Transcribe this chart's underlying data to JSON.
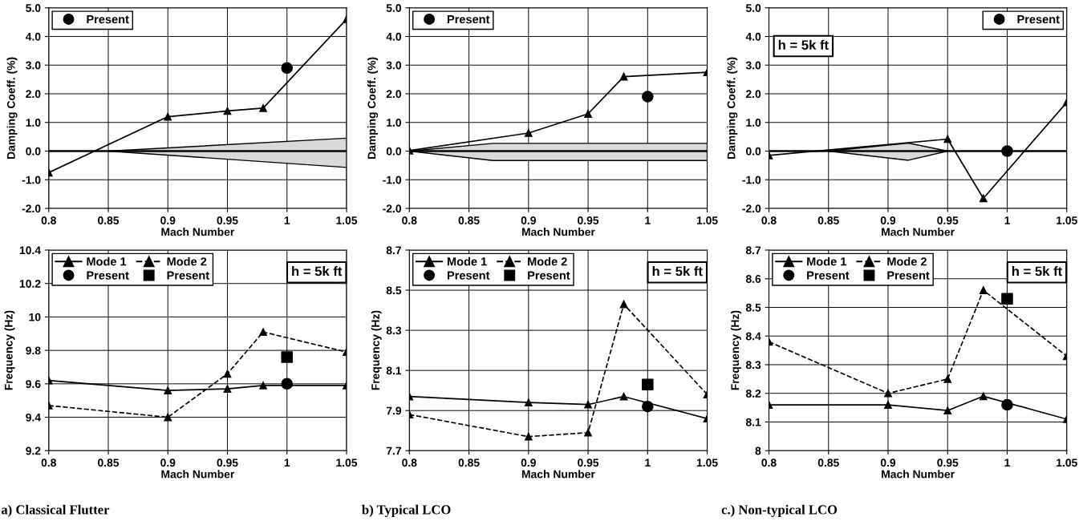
{
  "chart_data": [
    {
      "type": "line",
      "xlabel": "Mach Number",
      "ylabel": "Damping Coeff. (%)",
      "xlim": [
        0.8,
        1.05
      ],
      "xticks": [
        0.8,
        0.85,
        0.9,
        0.95,
        1,
        1.05
      ],
      "ylim": [
        -2,
        5
      ],
      "yticks": [
        {
          "value": -2,
          "label": "-2.0"
        },
        {
          "value": -1,
          "label": "-1.0"
        },
        {
          "value": 0,
          "label": "0.0"
        },
        {
          "value": 1,
          "label": "1.0"
        },
        {
          "value": 2,
          "label": "2.0"
        },
        {
          "value": 3,
          "label": "3.0"
        },
        {
          "value": 4,
          "label": "4.0"
        },
        {
          "value": 5,
          "label": "5.0"
        }
      ],
      "grid": true,
      "legend": "top left",
      "ref_lines": [
        {
          "axis": "y",
          "value": 0,
          "color": "#000000"
        }
      ],
      "series": [
        {
          "color": "#d9d9d9",
          "marker": "none",
          "x": [
            0.85,
            1.05
          ],
          "values": [
            null,
            null
          ],
          "lower": [
            0,
            -0.57
          ],
          "upper": [
            0,
            0.45
          ]
        },
        {
          "color": "#000000",
          "marker": "triangle",
          "line_style": "solid",
          "x": [
            0.8,
            0.9,
            0.95,
            0.98,
            1.05
          ],
          "values": [
            -0.75,
            1.2,
            1.4,
            1.5,
            4.6
          ]
        },
        {
          "type": "scatter",
          "name": "Present",
          "color": "#000000",
          "marker": "circle",
          "x": [
            1
          ],
          "values": [
            2.9
          ]
        }
      ]
    },
    {
      "type": "line",
      "xlabel": "Mach Number",
      "ylabel": "Damping Coeff. (%)",
      "xlim": [
        0.8,
        1.05
      ],
      "xticks": [
        0.8,
        0.85,
        0.9,
        0.95,
        1,
        1.05
      ],
      "ylim": [
        -2,
        5
      ],
      "yticks": [
        {
          "value": -2,
          "label": "-2.0"
        },
        {
          "value": -1,
          "label": "-1.0"
        },
        {
          "value": 0,
          "label": "0.0"
        },
        {
          "value": 1,
          "label": "1.0"
        },
        {
          "value": 2,
          "label": "2.0"
        },
        {
          "value": 3,
          "label": "3.0"
        },
        {
          "value": 4,
          "label": "4.0"
        },
        {
          "value": 5,
          "label": "5.0"
        }
      ],
      "grid": true,
      "legend": "top left",
      "ref_lines": [
        {
          "axis": "y",
          "value": 0,
          "color": "#000000"
        }
      ],
      "series": [
        {
          "color": "#d9d9d9",
          "marker": "none",
          "x": [
            0.8,
            0.87,
            1.05
          ],
          "values": [
            null,
            null,
            null
          ],
          "lower": [
            0,
            -0.33,
            -0.33
          ],
          "upper": [
            0,
            0.27,
            0.27
          ]
        },
        {
          "color": "#000000",
          "marker": "triangle",
          "line_style": "solid",
          "x": [
            0.8,
            0.9,
            0.95,
            0.98,
            1.05
          ],
          "values": [
            0.02,
            0.63,
            1.3,
            2.6,
            2.75
          ]
        },
        {
          "type": "scatter",
          "name": "Present",
          "color": "#000000",
          "marker": "circle",
          "x": [
            1
          ],
          "values": [
            1.9
          ]
        }
      ]
    },
    {
      "type": "line",
      "xlabel": "Mach Number",
      "ylabel": "Damping Coeff. (%)",
      "xlim": [
        0.8,
        1.05
      ],
      "xticks": [
        0.8,
        0.85,
        0.9,
        0.95,
        1,
        1.05
      ],
      "ylim": [
        -2,
        5
      ],
      "yticks": [
        {
          "value": -2,
          "label": "-2.0"
        },
        {
          "value": -1,
          "label": "-1.0"
        },
        {
          "value": 0,
          "label": "0.0"
        },
        {
          "value": 1,
          "label": "1.0"
        },
        {
          "value": 2,
          "label": "2.0"
        },
        {
          "value": 3,
          "label": "3.0"
        },
        {
          "value": 4,
          "label": "4.0"
        },
        {
          "value": 5,
          "label": "5.0"
        }
      ],
      "grid": true,
      "legend": "top right",
      "ref_lines": [
        {
          "axis": "y",
          "value": 0,
          "color": "#000000"
        }
      ],
      "annotations": [
        "h = 5k ft"
      ],
      "series": [
        {
          "color": "#d9d9d9",
          "marker": "none",
          "x": [
            0.85,
            0.917,
            0.95
          ],
          "values": [
            null,
            null,
            null
          ],
          "lower": [
            0,
            -0.32,
            0
          ],
          "upper": [
            0,
            0.28,
            0
          ]
        },
        {
          "color": "#000000",
          "marker": "triangle",
          "line_style": "solid",
          "x": [
            0.8,
            0.95,
            0.98,
            1.05
          ],
          "values": [
            -0.15,
            0.42,
            -1.65,
            1.7
          ]
        },
        {
          "type": "scatter",
          "name": "Present",
          "color": "#000000",
          "marker": "circle",
          "x": [
            1
          ],
          "values": [
            0.0
          ]
        }
      ]
    },
    {
      "type": "line",
      "xlabel": "Mach Number",
      "ylabel": "Frequency (Hz)",
      "xlim": [
        0.8,
        1.05
      ],
      "xticks": [
        0.8,
        0.85,
        0.9,
        0.95,
        1,
        1.05
      ],
      "ylim": [
        9.2,
        10.4
      ],
      "yticks": [
        9.2,
        9.4,
        9.6,
        9.8,
        10,
        10.2,
        10.4
      ],
      "grid": true,
      "legend": "top left",
      "annotations": [
        "h = 5k ft",
        "a) Classical Flutter"
      ],
      "series": [
        {
          "name": "Mode 1",
          "color": "#000000",
          "marker": "triangle",
          "line_style": "solid",
          "x": [
            0.8,
            0.9,
            0.95,
            0.98,
            1.05
          ],
          "values": [
            9.62,
            9.56,
            9.57,
            9.59,
            9.59
          ]
        },
        {
          "name": "Mode 2",
          "color": "#000000",
          "marker": "triangle",
          "line_style": "dashed",
          "x": [
            0.8,
            0.9,
            0.95,
            0.98,
            1.05
          ],
          "values": [
            9.47,
            9.4,
            9.66,
            9.91,
            9.79
          ]
        },
        {
          "type": "scatter",
          "name": "Present",
          "color": "#000000",
          "marker": "circle",
          "x": [
            1
          ],
          "values": [
            9.6
          ]
        },
        {
          "type": "scatter",
          "name": "Present",
          "color": "#000000",
          "marker": "square",
          "x": [
            1
          ],
          "values": [
            9.76
          ]
        }
      ]
    },
    {
      "type": "line",
      "xlabel": "Mach Number",
      "ylabel": "Frequency (Hz)",
      "xlim": [
        0.8,
        1.05
      ],
      "xticks": [
        0.8,
        0.85,
        0.9,
        0.95,
        1,
        1.05
      ],
      "ylim": [
        7.7,
        8.7
      ],
      "yticks": [
        7.7,
        7.9,
        8.1,
        8.3,
        8.5,
        8.7
      ],
      "grid": true,
      "legend": "top left",
      "annotations": [
        "h = 5k ft",
        "b) Typical LCO"
      ],
      "series": [
        {
          "name": "Mode 1",
          "color": "#000000",
          "marker": "triangle",
          "line_style": "solid",
          "x": [
            0.8,
            0.9,
            0.95,
            0.98,
            1.05
          ],
          "values": [
            7.97,
            7.94,
            7.93,
            7.97,
            7.86
          ]
        },
        {
          "name": "Mode 2",
          "color": "#000000",
          "marker": "triangle",
          "line_style": "dashed",
          "x": [
            0.8,
            0.9,
            0.95,
            0.98,
            1.05
          ],
          "values": [
            7.88,
            7.77,
            7.79,
            8.43,
            7.98
          ]
        },
        {
          "type": "scatter",
          "name": "Present",
          "color": "#000000",
          "marker": "circle",
          "x": [
            1
          ],
          "values": [
            7.92
          ]
        },
        {
          "type": "scatter",
          "name": "Present",
          "color": "#000000",
          "marker": "square",
          "x": [
            1
          ],
          "values": [
            8.03
          ]
        }
      ]
    },
    {
      "type": "line",
      "xlabel": "Mach Number",
      "ylabel": "Frequency (Hz)",
      "xlim": [
        0.8,
        1.05
      ],
      "xticks": [
        0.8,
        0.85,
        0.9,
        0.95,
        1,
        1.05
      ],
      "ylim": [
        8,
        8.7
      ],
      "yticks": [
        8,
        8.1,
        8.2,
        8.3,
        8.4,
        8.5,
        8.6,
        8.7
      ],
      "grid": true,
      "legend": "top left",
      "annotations": [
        "h = 5k ft",
        "c.) Non-typical LCO"
      ],
      "series": [
        {
          "name": "Mode 1",
          "color": "#000000",
          "marker": "triangle",
          "line_style": "solid",
          "x": [
            0.8,
            0.9,
            0.95,
            0.98,
            1.05
          ],
          "values": [
            8.16,
            8.16,
            8.14,
            8.19,
            8.11
          ]
        },
        {
          "name": "Mode 2",
          "color": "#000000",
          "marker": "triangle",
          "line_style": "dashed",
          "x": [
            0.8,
            0.9,
            0.95,
            0.98,
            1.05
          ],
          "values": [
            8.38,
            8.2,
            8.25,
            8.56,
            8.33
          ]
        },
        {
          "type": "scatter",
          "name": "Present",
          "color": "#000000",
          "marker": "circle",
          "x": [
            1
          ],
          "values": [
            8.16
          ]
        },
        {
          "type": "scatter",
          "name": "Present",
          "color": "#000000",
          "marker": "square",
          "x": [
            1
          ],
          "values": [
            8.53
          ]
        }
      ]
    }
  ]
}
